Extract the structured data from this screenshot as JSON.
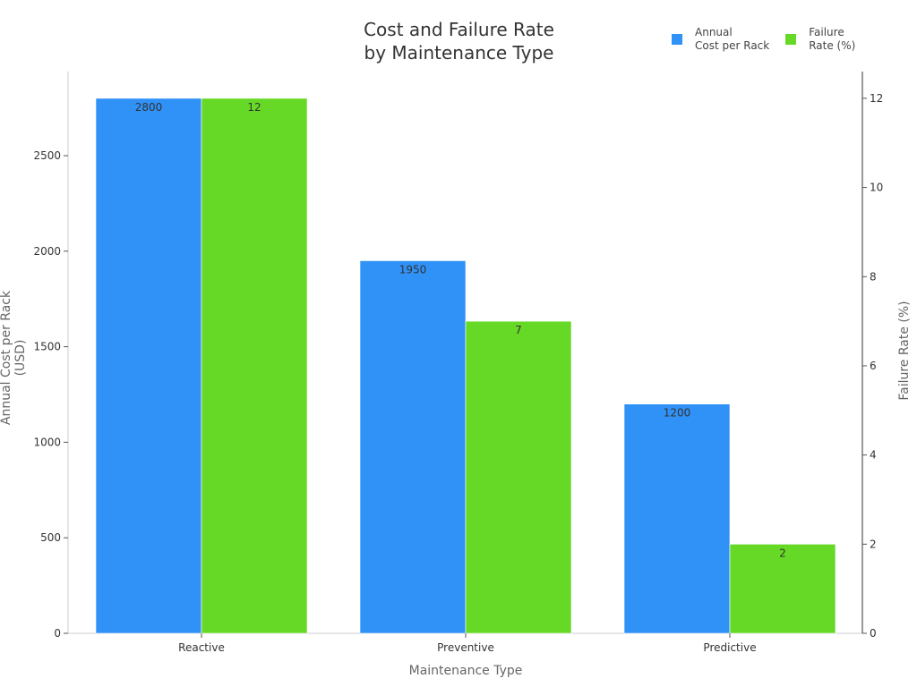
{
  "chart_data": {
    "type": "bar",
    "title": "Cost and Failure Rate by Maintenance Type",
    "title_lines": [
      "Cost and Failure Rate",
      "by Maintenance Type"
    ],
    "xlabel": "Maintenance Type",
    "ylabel": "Annual Cost per Rack (USD)",
    "y2label": "Failure Rate (%)",
    "categories": [
      "Reactive",
      "Preventive",
      "Predictive"
    ],
    "series": [
      {
        "name": "Annual Cost per Rack",
        "legend_label": "Annual\nCost per Rack",
        "axis": "left",
        "color": "#3091f7",
        "values": [
          2800,
          1950,
          1200
        ]
      },
      {
        "name": "Failure Rate (%)",
        "legend_label": "Failure\nRate (%)",
        "axis": "right",
        "color": "#66d926",
        "values": [
          12,
          7,
          2
        ]
      }
    ],
    "ylim": [
      0,
      2940
    ],
    "y2lim": [
      0,
      12.6
    ],
    "yticks": [
      0,
      500,
      1000,
      1500,
      2000,
      2500
    ],
    "y2ticks": [
      0,
      2,
      4,
      6,
      8,
      10,
      12
    ],
    "grid": false,
    "legend_position": "top-right"
  }
}
